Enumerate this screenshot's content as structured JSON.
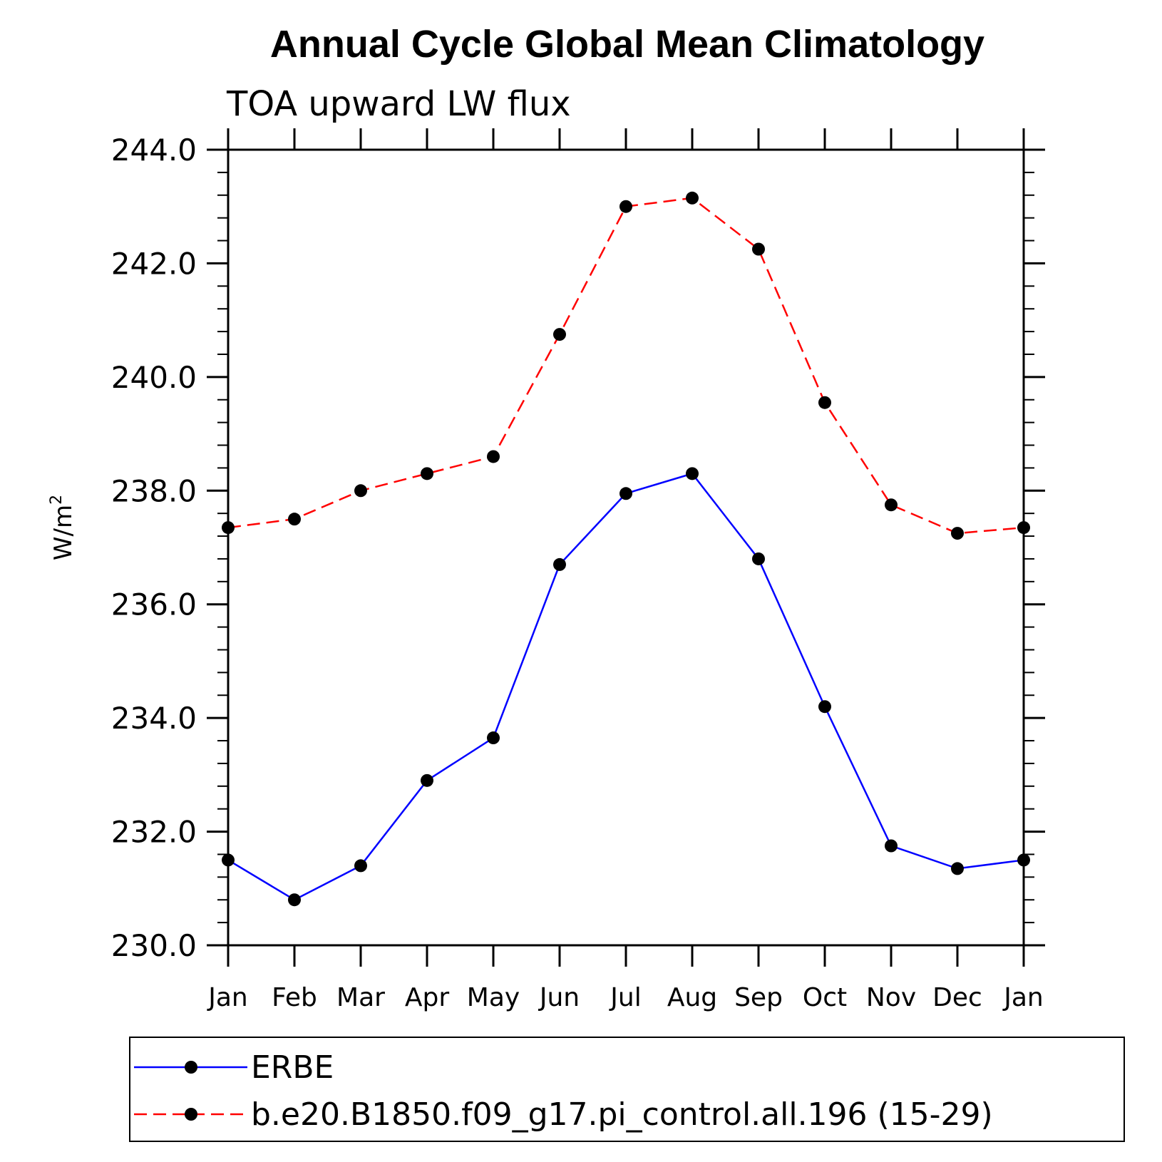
{
  "chart_data": {
    "type": "line",
    "title": "Annual Cycle Global Mean Climatology",
    "subtitle": "TOA upward LW flux",
    "ylabel": "W/m",
    "ylabel_sup": "2",
    "xlabel": "",
    "categories": [
      "Jan",
      "Feb",
      "Mar",
      "Apr",
      "May",
      "Jun",
      "Jul",
      "Aug",
      "Sep",
      "Oct",
      "Nov",
      "Dec",
      "Jan"
    ],
    "ylim": [
      230.0,
      244.0
    ],
    "yticks": [
      230.0,
      232.0,
      234.0,
      236.0,
      238.0,
      240.0,
      242.0,
      244.0
    ],
    "ytick_labels": [
      "230.0",
      "232.0",
      "234.0",
      "236.0",
      "238.0",
      "240.0",
      "242.0",
      "244.0"
    ],
    "grid": false,
    "legend_position": "bottom",
    "series": [
      {
        "name": "ERBE",
        "color": "#0000ff",
        "style": "solid",
        "marker": "dot",
        "values": [
          231.5,
          230.8,
          231.4,
          232.9,
          233.65,
          236.7,
          237.95,
          238.3,
          236.8,
          234.2,
          231.75,
          231.35,
          231.5
        ]
      },
      {
        "name": "b.e20.B1850.f09_g17.pi_control.all.196 (15-29)",
        "color": "#ff0000",
        "style": "dashed",
        "marker": "dot",
        "values": [
          237.35,
          237.5,
          238.0,
          238.3,
          238.6,
          240.75,
          243.0,
          243.15,
          242.25,
          239.55,
          237.75,
          237.25,
          237.35
        ]
      }
    ]
  }
}
